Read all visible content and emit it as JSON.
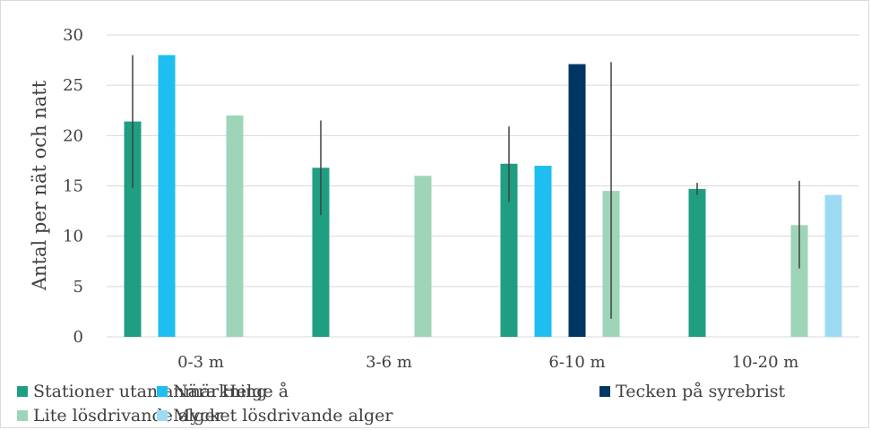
{
  "chart_data": {
    "type": "bar",
    "title": "",
    "xlabel": "",
    "ylabel": "Antal per nät och natt",
    "ylim": [
      0,
      30
    ],
    "yticks": [
      "0",
      "5",
      "10",
      "15",
      "20",
      "25",
      "30"
    ],
    "grid": true,
    "legend_position": "bottom",
    "categories": [
      "0-3 m",
      "3-6 m",
      "6-10 m",
      "10-20 m"
    ],
    "series": [
      {
        "name": "Stationer utan anmärkning",
        "color": "#1f9e82",
        "values": [
          21.4,
          16.8,
          17.2,
          14.7
        ],
        "error_low": [
          14.8,
          12.1,
          13.4,
          14.1
        ],
        "error_high": [
          28.0,
          21.5,
          20.9,
          15.3
        ]
      },
      {
        "name": "Nära Helge å",
        "color": "#1ebef0",
        "values": [
          28.0,
          null,
          17.0,
          null
        ],
        "error_low": [
          null,
          null,
          null,
          null
        ],
        "error_high": [
          null,
          null,
          null,
          null
        ]
      },
      {
        "name": "Tecken på syrebrist",
        "color": "#003663",
        "values": [
          null,
          null,
          27.1,
          null
        ],
        "error_low": [
          null,
          null,
          null,
          null
        ],
        "error_high": [
          null,
          null,
          null,
          null
        ]
      },
      {
        "name": "Lite lösdrivande alger",
        "color": "#9ed5b9",
        "values": [
          22.0,
          16.0,
          14.5,
          11.1
        ],
        "error_low": [
          null,
          null,
          1.8,
          6.8
        ],
        "error_high": [
          null,
          null,
          27.3,
          15.5
        ]
      },
      {
        "name": "Mycket lösdrivande alger",
        "color": "#9ddbf5",
        "values": [
          null,
          null,
          null,
          14.1
        ],
        "error_low": [
          null,
          null,
          null,
          null
        ],
        "error_high": [
          null,
          null,
          null,
          null
        ]
      }
    ]
  }
}
